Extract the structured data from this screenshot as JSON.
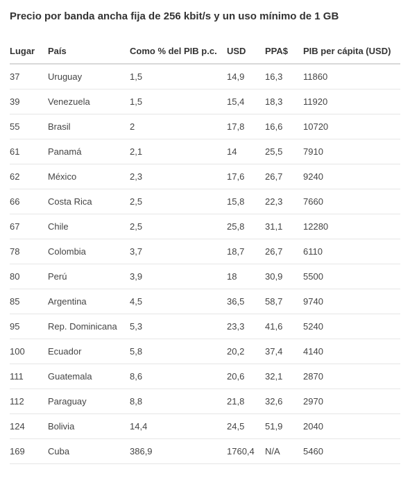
{
  "title": "Precio por banda ancha fija de 256 kbit/s y un uso mínimo de 1 GB",
  "table": {
    "columns": [
      {
        "key": "lugar",
        "label": "Lugar"
      },
      {
        "key": "pais",
        "label": "País"
      },
      {
        "key": "pct",
        "label": "Como % del PIB p.c."
      },
      {
        "key": "usd",
        "label": "USD"
      },
      {
        "key": "ppa",
        "label": "PPA$"
      },
      {
        "key": "gdp",
        "label": "PIB per cápita (USD)"
      }
    ],
    "rows": [
      {
        "lugar": "37",
        "pais": "Uruguay",
        "pct": "1,5",
        "usd": "14,9",
        "ppa": "16,3",
        "gdp": "11860"
      },
      {
        "lugar": "39",
        "pais": "Venezuela",
        "pct": "1,5",
        "usd": "15,4",
        "ppa": "18,3",
        "gdp": "11920"
      },
      {
        "lugar": "55",
        "pais": "Brasil",
        "pct": "2",
        "usd": "17,8",
        "ppa": "16,6",
        "gdp": "10720"
      },
      {
        "lugar": "61",
        "pais": "Panamá",
        "pct": "2,1",
        "usd": "14",
        "ppa": "25,5",
        "gdp": "7910"
      },
      {
        "lugar": "62",
        "pais": "México",
        "pct": "2,3",
        "usd": "17,6",
        "ppa": "26,7",
        "gdp": "9240"
      },
      {
        "lugar": "66",
        "pais": "Costa Rica",
        "pct": "2,5",
        "usd": "15,8",
        "ppa": "22,3",
        "gdp": "7660"
      },
      {
        "lugar": "67",
        "pais": "Chile",
        "pct": "2,5",
        "usd": "25,8",
        "ppa": "31,1",
        "gdp": "12280"
      },
      {
        "lugar": "78",
        "pais": "Colombia",
        "pct": "3,7",
        "usd": "18,7",
        "ppa": "26,7",
        "gdp": "6110"
      },
      {
        "lugar": "80",
        "pais": "Perú",
        "pct": "3,9",
        "usd": "18",
        "ppa": "30,9",
        "gdp": "5500"
      },
      {
        "lugar": "85",
        "pais": "Argentina",
        "pct": "4,5",
        "usd": "36,5",
        "ppa": "58,7",
        "gdp": "9740"
      },
      {
        "lugar": "95",
        "pais": "Rep. Dominicana",
        "pct": "5,3",
        "usd": "23,3",
        "ppa": "41,6",
        "gdp": "5240"
      },
      {
        "lugar": "100",
        "pais": "Ecuador",
        "pct": "5,8",
        "usd": "20,2",
        "ppa": "37,4",
        "gdp": "4140"
      },
      {
        "lugar": "111",
        "pais": "Guatemala",
        "pct": "8,6",
        "usd": "20,6",
        "ppa": "32,1",
        "gdp": "2870"
      },
      {
        "lugar": "112",
        "pais": "Paraguay",
        "pct": "8,8",
        "usd": "21,8",
        "ppa": "32,6",
        "gdp": "2970"
      },
      {
        "lugar": "124",
        "pais": "Bolivia",
        "pct": "14,4",
        "usd": "24,5",
        "ppa": "51,9",
        "gdp": "2040"
      },
      {
        "lugar": "169",
        "pais": "Cuba",
        "pct": "386,9",
        "usd": "1760,4",
        "ppa": "N/A",
        "gdp": "5460"
      }
    ]
  }
}
